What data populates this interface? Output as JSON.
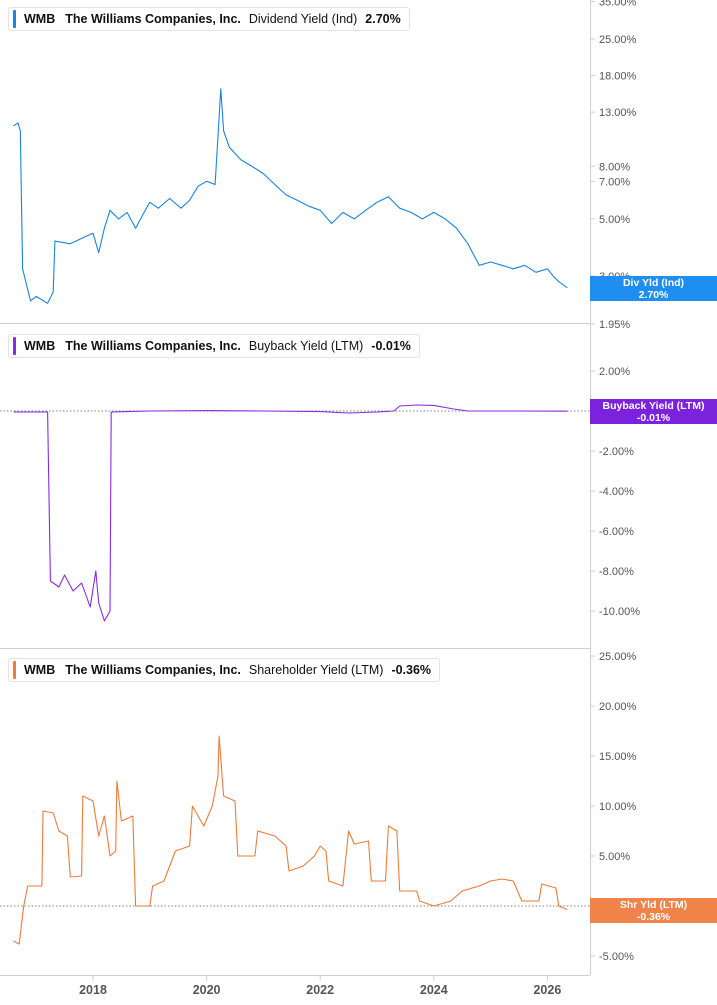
{
  "panels": [
    {
      "ticker": "WMB",
      "company": "The Williams Companies, Inc.",
      "metric": "Dividend Yield (Ind)",
      "value": "2.70%",
      "tag_label": "Div Yld (Ind)",
      "tag_value": "2.70%",
      "color": "#1a84e0",
      "tag_color": "#1e8ff0"
    },
    {
      "ticker": "WMB",
      "company": "The Williams Companies, Inc.",
      "metric": "Buyback Yield (LTM)",
      "value": "-0.01%",
      "tag_label": "Buyback Yield (LTM)",
      "tag_value": "-0.01%",
      "color": "#8a2be2",
      "tag_color": "#7b22dd"
    },
    {
      "ticker": "WMB",
      "company": "The Williams Companies, Inc.",
      "metric": "Shareholder Yield (LTM)",
      "value": "-0.36%",
      "tag_label": "Shr Yld (LTM)",
      "tag_value": "-0.36%",
      "color": "#ee7b3a",
      "tag_color": "#f0834a"
    }
  ],
  "chart_data": [
    {
      "type": "line",
      "title": "WMB The Williams Companies, Inc. Dividend Yield (Ind) 2.70%",
      "scale": "log",
      "y_ticks": [
        "35.00%",
        "25.00%",
        "18.00%",
        "13.00%",
        "8.00%",
        "7.00%",
        "5.00%",
        "3.00%",
        "1.95%"
      ],
      "y_tick_values": [
        35,
        25,
        18,
        13,
        8,
        7,
        5,
        3,
        1.95
      ],
      "series": [
        {
          "name": "Div Yld (Ind)",
          "points": [
            [
              2016.6,
              11.5
            ],
            [
              2016.68,
              11.8
            ],
            [
              2016.72,
              11.0
            ],
            [
              2016.76,
              3.2
            ],
            [
              2016.9,
              2.4
            ],
            [
              2017.0,
              2.5
            ],
            [
              2017.2,
              2.35
            ],
            [
              2017.3,
              2.6
            ],
            [
              2017.33,
              4.1
            ],
            [
              2017.6,
              4.0
            ],
            [
              2017.8,
              4.2
            ],
            [
              2017.9,
              4.3
            ],
            [
              2018.0,
              4.4
            ],
            [
              2018.1,
              3.7
            ],
            [
              2018.2,
              4.6
            ],
            [
              2018.3,
              5.4
            ],
            [
              2018.45,
              5.0
            ],
            [
              2018.6,
              5.3
            ],
            [
              2018.75,
              4.6
            ],
            [
              2018.9,
              5.3
            ],
            [
              2019.0,
              5.8
            ],
            [
              2019.15,
              5.5
            ],
            [
              2019.35,
              6.0
            ],
            [
              2019.55,
              5.5
            ],
            [
              2019.7,
              5.9
            ],
            [
              2019.85,
              6.7
            ],
            [
              2020.0,
              7.0
            ],
            [
              2020.15,
              6.8
            ],
            [
              2020.2,
              10.5
            ],
            [
              2020.25,
              16.0
            ],
            [
              2020.3,
              11.0
            ],
            [
              2020.4,
              9.5
            ],
            [
              2020.6,
              8.5
            ],
            [
              2020.8,
              8.0
            ],
            [
              2021.0,
              7.5
            ],
            [
              2021.2,
              6.8
            ],
            [
              2021.4,
              6.2
            ],
            [
              2021.6,
              5.9
            ],
            [
              2021.8,
              5.6
            ],
            [
              2022.0,
              5.4
            ],
            [
              2022.2,
              4.8
            ],
            [
              2022.4,
              5.3
            ],
            [
              2022.6,
              5.0
            ],
            [
              2022.8,
              5.4
            ],
            [
              2023.0,
              5.8
            ],
            [
              2023.2,
              6.1
            ],
            [
              2023.4,
              5.5
            ],
            [
              2023.6,
              5.3
            ],
            [
              2023.8,
              5.0
            ],
            [
              2024.0,
              5.3
            ],
            [
              2024.2,
              5.0
            ],
            [
              2024.4,
              4.6
            ],
            [
              2024.6,
              4.0
            ],
            [
              2024.8,
              3.3
            ],
            [
              2025.0,
              3.4
            ],
            [
              2025.2,
              3.3
            ],
            [
              2025.4,
              3.2
            ],
            [
              2025.6,
              3.3
            ],
            [
              2025.8,
              3.1
            ],
            [
              2026.0,
              3.2
            ],
            [
              2026.1,
              3.0
            ],
            [
              2026.2,
              2.85
            ],
            [
              2026.35,
              2.7
            ]
          ]
        }
      ],
      "last_value": 2.7
    },
    {
      "type": "line",
      "title": "WMB The Williams Companies, Inc. Buyback Yield (LTM) -0.01%",
      "y_ticks": [
        "2.00%",
        "-2.00%",
        "-4.00%",
        "-6.00%",
        "-8.00%",
        "-10.00%"
      ],
      "y_tick_values": [
        2,
        -2,
        -4,
        -6,
        -8,
        -10
      ],
      "zero_line": true,
      "series": [
        {
          "name": "Buyback Yield (LTM)",
          "points": [
            [
              2016.6,
              -0.05
            ],
            [
              2017.2,
              -0.05
            ],
            [
              2017.25,
              -8.5
            ],
            [
              2017.4,
              -8.8
            ],
            [
              2017.5,
              -8.2
            ],
            [
              2017.65,
              -9.0
            ],
            [
              2017.8,
              -8.6
            ],
            [
              2017.95,
              -9.8
            ],
            [
              2018.05,
              -8.0
            ],
            [
              2018.1,
              -9.6
            ],
            [
              2018.2,
              -10.5
            ],
            [
              2018.3,
              -10.0
            ],
            [
              2018.32,
              -0.05
            ],
            [
              2019.0,
              0.0
            ],
            [
              2020.0,
              0.02
            ],
            [
              2021.0,
              0.0
            ],
            [
              2022.0,
              -0.03
            ],
            [
              2022.5,
              -0.1
            ],
            [
              2023.0,
              -0.05
            ],
            [
              2023.3,
              0.0
            ],
            [
              2023.4,
              0.25
            ],
            [
              2023.7,
              0.3
            ],
            [
              2024.0,
              0.28
            ],
            [
              2024.35,
              0.1
            ],
            [
              2024.6,
              0.0
            ],
            [
              2025.5,
              0.0
            ],
            [
              2026.35,
              -0.01
            ]
          ]
        }
      ],
      "last_value": -0.01
    },
    {
      "type": "line",
      "title": "WMB The Williams Companies, Inc. Shareholder Yield (LTM) -0.36%",
      "y_ticks": [
        "25.00%",
        "20.00%",
        "15.00%",
        "10.00%",
        "5.00%",
        "-5.00%"
      ],
      "y_tick_values": [
        25,
        20,
        15,
        10,
        5,
        -5
      ],
      "zero_line": true,
      "series": [
        {
          "name": "Shr Yld (LTM)",
          "points": [
            [
              2016.6,
              -3.5
            ],
            [
              2016.7,
              -3.8
            ],
            [
              2016.78,
              0.0
            ],
            [
              2016.85,
              2.0
            ],
            [
              2017.1,
              2.0
            ],
            [
              2017.12,
              9.5
            ],
            [
              2017.3,
              9.3
            ],
            [
              2017.4,
              7.5
            ],
            [
              2017.55,
              7.0
            ],
            [
              2017.6,
              2.9
            ],
            [
              2017.8,
              3.0
            ],
            [
              2017.82,
              11.0
            ],
            [
              2018.0,
              10.5
            ],
            [
              2018.1,
              7.0
            ],
            [
              2018.2,
              9.0
            ],
            [
              2018.3,
              5.0
            ],
            [
              2018.4,
              5.5
            ],
            [
              2018.42,
              12.5
            ],
            [
              2018.5,
              8.5
            ],
            [
              2018.7,
              9.0
            ],
            [
              2018.75,
              0.0
            ],
            [
              2019.0,
              0.0
            ],
            [
              2019.05,
              2.0
            ],
            [
              2019.25,
              2.5
            ],
            [
              2019.45,
              5.5
            ],
            [
              2019.7,
              6.0
            ],
            [
              2019.75,
              10.0
            ],
            [
              2019.95,
              8.0
            ],
            [
              2020.1,
              10.0
            ],
            [
              2020.2,
              13.0
            ],
            [
              2020.22,
              17.0
            ],
            [
              2020.3,
              11.0
            ],
            [
              2020.5,
              10.5
            ],
            [
              2020.55,
              5.0
            ],
            [
              2020.85,
              5.0
            ],
            [
              2020.9,
              7.5
            ],
            [
              2021.2,
              7.0
            ],
            [
              2021.4,
              6.0
            ],
            [
              2021.45,
              3.5
            ],
            [
              2021.7,
              4.0
            ],
            [
              2021.9,
              5.0
            ],
            [
              2022.0,
              6.0
            ],
            [
              2022.1,
              5.5
            ],
            [
              2022.15,
              2.5
            ],
            [
              2022.4,
              2.0
            ],
            [
              2022.5,
              7.5
            ],
            [
              2022.6,
              6.2
            ],
            [
              2022.85,
              6.5
            ],
            [
              2022.9,
              2.5
            ],
            [
              2023.15,
              2.5
            ],
            [
              2023.2,
              8.0
            ],
            [
              2023.35,
              7.5
            ],
            [
              2023.4,
              1.5
            ],
            [
              2023.7,
              1.5
            ],
            [
              2023.75,
              0.5
            ],
            [
              2024.0,
              0.0
            ],
            [
              2024.3,
              0.5
            ],
            [
              2024.5,
              1.5
            ],
            [
              2024.8,
              2.0
            ],
            [
              2025.0,
              2.5
            ],
            [
              2025.2,
              2.7
            ],
            [
              2025.4,
              2.5
            ],
            [
              2025.55,
              0.5
            ],
            [
              2025.85,
              0.5
            ],
            [
              2025.9,
              2.2
            ],
            [
              2026.15,
              1.8
            ],
            [
              2026.2,
              0.0
            ],
            [
              2026.35,
              -0.36
            ]
          ]
        }
      ],
      "last_value": -0.36
    }
  ],
  "x_axis": {
    "ticks": [
      "2018",
      "2020",
      "2022",
      "2024",
      "2026"
    ],
    "tick_values": [
      2018,
      2020,
      2022,
      2024,
      2026
    ]
  }
}
